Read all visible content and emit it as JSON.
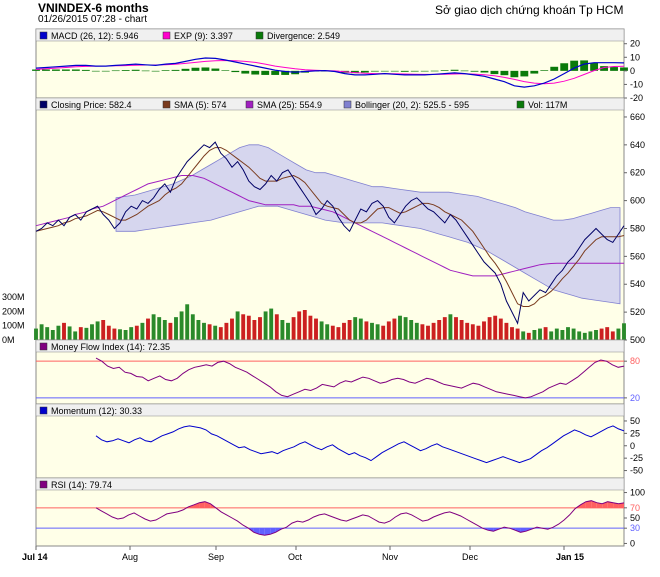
{
  "header": {
    "title": "VNINDEX-6 months",
    "timestamp": "01/26/2015 07:28 -  chart",
    "source": "Sở giao dịch chứng khoán Tp HCM"
  },
  "colors": {
    "panel_bg": "#ffffe8",
    "legend_bg": "#f0f0f0",
    "price": "#000066",
    "sma5": "#7a3b1e",
    "sma25": "#a020c0",
    "bollinger_fill": "#c8c8f0",
    "bollinger_line": "#8080d0",
    "vol_up": "#2a8a2a",
    "vol_down": "#cc2020",
    "macd": "#0000cc",
    "signal": "#ff00cc",
    "divergence": "#0a7a0a",
    "mfi": "#800080",
    "momentum": "#0000cc",
    "rsi": "#800080",
    "overbought": "#ff6060",
    "oversold": "#6060ff"
  },
  "chart_data": [
    {
      "type": "bar",
      "name": "MACD panel",
      "legend": [
        {
          "label": "MACD (26, 12): 5.946",
          "color": "#0000cc"
        },
        {
          "label": "EXP (9): 3.397",
          "color": "#ff00cc"
        },
        {
          "label": "Divergence: 2.549",
          "color": "#0a7a0a"
        }
      ],
      "yticks": [
        "20",
        "10",
        "0",
        "-10",
        "-20"
      ],
      "ylim": [
        -20,
        22
      ],
      "macd": [
        2,
        2.5,
        3,
        3.5,
        4,
        4,
        3.5,
        3.5,
        4,
        4.5,
        5,
        4.5,
        4,
        5,
        5.5,
        7,
        8.5,
        9.5,
        9.2,
        8,
        6.5,
        5,
        3.5,
        2,
        0.5,
        -0.5,
        -1,
        -0.5,
        0,
        0.2,
        -0.5,
        -2,
        -3,
        -3,
        -2.5,
        -2,
        -2.5,
        -3,
        -3,
        -3,
        -2.5,
        -2,
        -1.5,
        -2,
        -3,
        -4,
        -6,
        -8,
        -11,
        -12,
        -11,
        -9,
        -6,
        -2,
        2,
        5,
        6,
        6,
        6,
        5.9
      ],
      "signal": [
        1,
        1.5,
        2,
        2.5,
        3,
        3.3,
        3.5,
        3.6,
        3.7,
        3.9,
        4.2,
        4.3,
        4.3,
        4.5,
        4.8,
        5.5,
        6.2,
        7,
        7.5,
        7.6,
        7.4,
        7,
        6.2,
        5,
        3.5,
        2.5,
        1.5,
        0.8,
        0.4,
        0.2,
        0,
        -0.6,
        -1.3,
        -1.8,
        -2,
        -2,
        -2.1,
        -2.3,
        -2.5,
        -2.6,
        -2.6,
        -2.5,
        -2.3,
        -2.2,
        -2.4,
        -2.8,
        -3.6,
        -4.8,
        -6.3,
        -7.9,
        -9,
        -9.5,
        -9,
        -7.6,
        -5.5,
        -2.7,
        0.2,
        2.5,
        3.2,
        3.4
      ],
      "divergence": [
        1,
        1,
        1,
        1,
        1,
        0.7,
        0,
        -0.1,
        0.3,
        0.6,
        0.8,
        0.2,
        -0.3,
        0.5,
        0.7,
        1.5,
        2.3,
        2.5,
        1.7,
        0.4,
        -0.9,
        -2,
        -2.7,
        -3,
        -3,
        -3,
        -2.5,
        -1.3,
        -0.4,
        0,
        -0.5,
        -1.4,
        -1.7,
        -1.2,
        -0.5,
        0,
        -0.4,
        -0.7,
        -0.5,
        -0.4,
        0.1,
        0.5,
        0.8,
        0.2,
        -0.6,
        -1.2,
        -2.4,
        -3.2,
        -4.7,
        -4.1,
        -2,
        0.5,
        3,
        5.6,
        7.5,
        7.7,
        5.8,
        3.5,
        2.8,
        2.5
      ]
    },
    {
      "type": "line",
      "name": "Price panel",
      "legend": [
        {
          "label": "Closing Price: 582.4",
          "color": "#000066"
        },
        {
          "label": "SMA (5): 574",
          "color": "#7a3b1e"
        },
        {
          "label": "SMA (25): 554.9",
          "color": "#a020c0"
        },
        {
          "label": "Bollinger (20, 2): 525.5 - 595",
          "color": "#8080d0"
        },
        {
          "label": "Vol: 117M",
          "color": "#0a7a0a"
        }
      ],
      "yticks": [
        "660",
        "640",
        "620",
        "600",
        "580",
        "560",
        "540",
        "520",
        "500"
      ],
      "ylim": [
        500,
        665
      ],
      "vol_ticks": [
        "300M",
        "200M",
        "100M",
        "0M"
      ],
      "vol_max": 350,
      "close": [
        578,
        580,
        584,
        582,
        586,
        582,
        588,
        590,
        586,
        592,
        594,
        596,
        590,
        586,
        580,
        584,
        592,
        596,
        594,
        600,
        598,
        602,
        608,
        612,
        606,
        616,
        622,
        628,
        632,
        636,
        640,
        638,
        642,
        634,
        630,
        624,
        628,
        622,
        614,
        610,
        608,
        612,
        618,
        614,
        620,
        622,
        616,
        610,
        604,
        598,
        590,
        594,
        600,
        596,
        588,
        582,
        578,
        586,
        594,
        592,
        598,
        600,
        596,
        588,
        584,
        590,
        596,
        600,
        602,
        598,
        594,
        592,
        588,
        584,
        590,
        586,
        580,
        574,
        568,
        562,
        556,
        552,
        548,
        540,
        528,
        520,
        512,
        534,
        528,
        532,
        536,
        534,
        540,
        546,
        550,
        556,
        560,
        566,
        572,
        576,
        580,
        576,
        572,
        570,
        576,
        582
      ],
      "sma5": [
        578,
        579,
        580,
        581,
        582,
        584,
        585,
        587,
        588,
        589,
        591,
        593,
        592,
        590,
        588,
        586,
        586,
        588,
        590,
        593,
        596,
        598,
        600,
        604,
        607,
        609,
        612,
        617,
        622,
        627,
        632,
        636,
        638,
        638,
        636,
        633,
        630,
        627,
        624,
        620,
        616,
        614,
        614,
        614,
        616,
        617,
        618,
        616,
        613,
        608,
        603,
        598,
        596,
        595,
        594,
        590,
        586,
        584,
        584,
        586,
        590,
        594,
        595,
        595,
        593,
        591,
        592,
        594,
        596,
        598,
        598,
        597,
        595,
        592,
        590,
        588,
        586,
        582,
        578,
        572,
        566,
        560,
        555,
        549,
        542,
        534,
        526,
        524,
        524,
        526,
        530,
        532,
        535,
        539,
        544,
        548,
        553,
        558,
        564,
        568,
        572,
        574,
        574,
        574,
        574,
        575
      ],
      "sma25": [
        582,
        583,
        584,
        585,
        586,
        587,
        588,
        590,
        591,
        592,
        594,
        595,
        596,
        598,
        600,
        602,
        604,
        606,
        608,
        610,
        612,
        613,
        614,
        615,
        616,
        617,
        618,
        618,
        618,
        617,
        616,
        614,
        612,
        610,
        608,
        606,
        604,
        602,
        600,
        599,
        598,
        597,
        597,
        597,
        597,
        597,
        597,
        596,
        596,
        596,
        595,
        594,
        593,
        592,
        590,
        588,
        586,
        584,
        582,
        580,
        578,
        576,
        574,
        572,
        570,
        568,
        566,
        564,
        562,
        560,
        558,
        556,
        554,
        552,
        550,
        549,
        548,
        547,
        546,
        546,
        546,
        546,
        546,
        547,
        548,
        549,
        550,
        551,
        552,
        553,
        554,
        554.5,
        554.9,
        555,
        555,
        555,
        555,
        555,
        555,
        555,
        555,
        555,
        555,
        555,
        555,
        555
      ],
      "bb_upper": [
        602,
        603,
        604,
        606,
        608,
        610,
        612,
        615,
        618,
        622,
        626,
        630,
        634,
        638,
        640,
        640,
        638,
        634,
        630,
        626,
        622,
        620,
        620,
        618,
        616,
        614,
        612,
        610,
        610,
        609,
        608,
        607,
        606,
        606,
        606,
        606,
        605,
        604,
        603,
        601,
        599,
        597,
        595,
        592,
        590,
        588,
        586,
        586,
        587,
        589,
        591,
        593,
        595,
        595
      ],
      "bb_lower": [
        578,
        578,
        578,
        579,
        580,
        581,
        582,
        583,
        584,
        585,
        586,
        588,
        590,
        592,
        594,
        596,
        596,
        596,
        594,
        592,
        590,
        588,
        586,
        585,
        584,
        584,
        584,
        584,
        584,
        583,
        582,
        581,
        580,
        578,
        576,
        574,
        572,
        570,
        567,
        564,
        560,
        556,
        552,
        548,
        544,
        540,
        536,
        534,
        532,
        530,
        529,
        528,
        527,
        526
      ],
      "volume": [
        80,
        110,
        90,
        70,
        100,
        120,
        95,
        60,
        90,
        85,
        110,
        130,
        140,
        100,
        80,
        75,
        70,
        90,
        100,
        120,
        150,
        180,
        160,
        140,
        120,
        160,
        200,
        250,
        180,
        140,
        120,
        110,
        100,
        90,
        120,
        150,
        200,
        180,
        170,
        140,
        160,
        200,
        220,
        180,
        140,
        120,
        160,
        200,
        210,
        170,
        150,
        130,
        110,
        100,
        90,
        120,
        140,
        160,
        150,
        130,
        120,
        110,
        100,
        130,
        150,
        170,
        160,
        140,
        120,
        110,
        100,
        120,
        140,
        160,
        180,
        160,
        140,
        120,
        110,
        100,
        130,
        160,
        170,
        150,
        120,
        90,
        80,
        60,
        50,
        70,
        80,
        90,
        60,
        80,
        70,
        90,
        80,
        60,
        50,
        60,
        70,
        80,
        90,
        60,
        80,
        117
      ],
      "volume_up": [
        true,
        true,
        true,
        true,
        true,
        false,
        true,
        true,
        false,
        true,
        true,
        true,
        false,
        false,
        false,
        true,
        true,
        true,
        false,
        true,
        false,
        true,
        true,
        true,
        false,
        true,
        true,
        true,
        true,
        true,
        true,
        false,
        true,
        false,
        false,
        false,
        true,
        false,
        false,
        false,
        false,
        true,
        true,
        false,
        true,
        true,
        false,
        false,
        false,
        false,
        false,
        true,
        true,
        false,
        false,
        false,
        false,
        true,
        true,
        false,
        true,
        true,
        false,
        false,
        false,
        true,
        true,
        true,
        true,
        false,
        false,
        false,
        false,
        false,
        true,
        false,
        false,
        false,
        false,
        false,
        false,
        false,
        false,
        false,
        false,
        false,
        false,
        true,
        false,
        true,
        true,
        false,
        true,
        true,
        true,
        true,
        true,
        true,
        true,
        true,
        true,
        false,
        false,
        false,
        true,
        true
      ],
      "xticks": [
        "Jul 14",
        "Aug",
        "Sep",
        "Oct",
        "Nov",
        "Dec",
        "Jan 15"
      ]
    },
    {
      "type": "line",
      "name": "Money Flow Index panel",
      "legend": [
        {
          "label": "Money Flow Index (14): 72.35",
          "color": "#800080"
        }
      ],
      "yticks": [
        "80",
        "20"
      ],
      "ylim": [
        10,
        95
      ],
      "overbought": 80,
      "oversold": 20,
      "values": [
        85,
        80,
        72,
        68,
        70,
        62,
        60,
        55,
        54,
        48,
        52,
        56,
        50,
        48,
        52,
        60,
        66,
        70,
        72,
        74,
        72,
        78,
        80,
        76,
        70,
        66,
        62,
        56,
        50,
        44,
        38,
        30,
        24,
        22,
        26,
        30,
        34,
        32,
        36,
        42,
        40,
        38,
        44,
        48,
        46,
        50,
        54,
        52,
        48,
        44,
        46,
        50,
        52,
        50,
        46,
        44,
        48,
        52,
        50,
        46,
        42,
        40,
        38,
        36,
        40,
        44,
        42,
        38,
        34,
        30,
        28,
        26,
        24,
        22,
        20,
        22,
        26,
        30,
        36,
        40,
        44,
        42,
        48,
        54,
        62,
        70,
        78,
        82,
        80,
        74,
        70,
        72
      ]
    },
    {
      "type": "line",
      "name": "Momentum panel",
      "legend": [
        {
          "label": "Momentum (12): 30.33",
          "color": "#0000cc"
        }
      ],
      "yticks": [
        "50",
        "25",
        "0",
        "-25",
        "-50"
      ],
      "ylim": [
        -65,
        60
      ],
      "values": [
        20,
        12,
        8,
        10,
        14,
        10,
        6,
        12,
        16,
        10,
        8,
        14,
        20,
        24,
        28,
        34,
        38,
        40,
        38,
        36,
        32,
        24,
        20,
        14,
        8,
        2,
        -4,
        -2,
        -8,
        -12,
        -16,
        -14,
        -12,
        -16,
        -10,
        -6,
        -2,
        4,
        8,
        2,
        -4,
        -8,
        -2,
        2,
        -6,
        -12,
        -18,
        -14,
        -20,
        -24,
        -30,
        -22,
        -14,
        -8,
        -2,
        4,
        8,
        2,
        -4,
        -10,
        -6,
        0,
        4,
        -2,
        -6,
        -10,
        -14,
        -18,
        -22,
        -26,
        -30,
        -34,
        -30,
        -26,
        -22,
        -26,
        -30,
        -34,
        -30,
        -26,
        -18,
        -10,
        -4,
        4,
        12,
        20,
        26,
        32,
        28,
        22,
        18,
        24,
        30,
        36,
        40,
        34,
        30
      ]
    },
    {
      "type": "line",
      "name": "RSI panel",
      "legend": [
        {
          "label": "RSI (14): 79.74",
          "color": "#800080"
        }
      ],
      "yticks": [
        "100",
        "70",
        "50",
        "30",
        "0"
      ],
      "ylim": [
        -5,
        105
      ],
      "overbought": 70,
      "oversold": 30,
      "values": [
        70,
        64,
        58,
        52,
        48,
        50,
        56,
        60,
        54,
        48,
        44,
        46,
        52,
        58,
        60,
        62,
        66,
        72,
        76,
        80,
        82,
        78,
        70,
        62,
        56,
        50,
        44,
        36,
        30,
        22,
        18,
        16,
        18,
        22,
        28,
        32,
        40,
        44,
        42,
        46,
        52,
        56,
        58,
        54,
        50,
        46,
        44,
        48,
        52,
        56,
        54,
        48,
        42,
        40,
        44,
        52,
        58,
        60,
        56,
        50,
        44,
        46,
        52,
        56,
        60,
        62,
        58,
        54,
        48,
        42,
        36,
        30,
        26,
        24,
        28,
        32,
        30,
        26,
        22,
        24,
        28,
        32,
        30,
        28,
        32,
        38,
        46,
        56,
        68,
        76,
        82,
        84,
        80,
        78,
        82,
        80,
        78,
        79.74
      ]
    }
  ]
}
